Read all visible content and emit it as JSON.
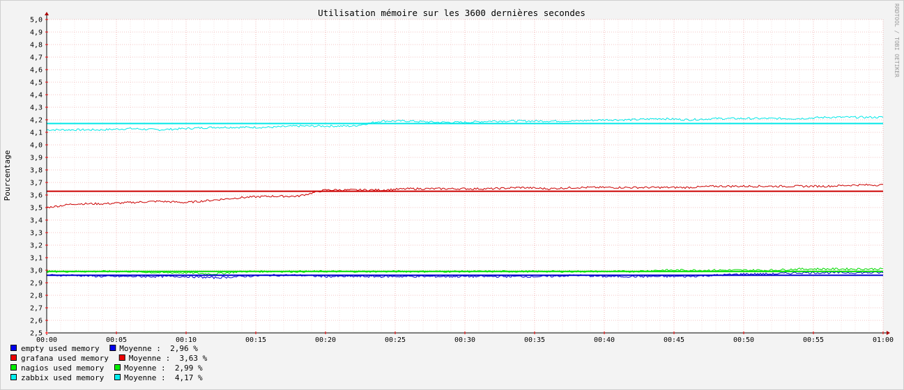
{
  "chart_data": {
    "type": "line",
    "title": "Utilisation mémoire sur les 3600 dernières secondes",
    "ylabel": "Pourcentage",
    "xlabel": "",
    "watermark": "RRDTOOL / TOBI OETIKER",
    "ylim": [
      2.5,
      5.0
    ],
    "xlim": [
      "00:00",
      "01:00"
    ],
    "grid": true,
    "legend_position": "bottom-left",
    "x_ticks": [
      "00:00",
      "00:05",
      "00:10",
      "00:15",
      "00:20",
      "00:25",
      "00:30",
      "00:35",
      "00:40",
      "00:45",
      "00:50",
      "00:55",
      "01:00"
    ],
    "y_ticks": [
      "2,5",
      "2,6",
      "2,7",
      "2,8",
      "2,9",
      "3,0",
      "3,1",
      "3,2",
      "3,3",
      "3,4",
      "3,5",
      "3,6",
      "3,7",
      "3,8",
      "3,9",
      "4,0",
      "4,1",
      "4,2",
      "4,3",
      "4,4",
      "4,5",
      "4,6",
      "4,7",
      "4,8",
      "4,9",
      "5,0"
    ],
    "x": [
      "00:00",
      "00:02",
      "00:04",
      "00:06",
      "00:08",
      "00:10",
      "00:12",
      "00:14",
      "00:16",
      "00:18",
      "00:20",
      "00:22",
      "00:24",
      "00:26",
      "00:28",
      "00:30",
      "00:32",
      "00:34",
      "00:36",
      "00:38",
      "00:40",
      "00:42",
      "00:44",
      "00:46",
      "00:48",
      "00:50",
      "00:52",
      "00:54",
      "00:56",
      "00:58",
      "01:00"
    ],
    "series": [
      {
        "name": "zabbix used memory",
        "color": "#00e8e8",
        "average": 4.17,
        "values": [
          4.12,
          4.12,
          4.12,
          4.13,
          4.12,
          4.13,
          4.14,
          4.14,
          4.14,
          4.15,
          4.15,
          4.15,
          4.19,
          4.19,
          4.18,
          4.18,
          4.19,
          4.19,
          4.19,
          4.19,
          4.2,
          4.2,
          4.21,
          4.2,
          4.21,
          4.21,
          4.21,
          4.21,
          4.22,
          4.22,
          4.22
        ]
      },
      {
        "name": "grafana used memory",
        "color": "#cc0000",
        "average": 3.63,
        "values": [
          3.5,
          3.53,
          3.53,
          3.54,
          3.55,
          3.54,
          3.56,
          3.58,
          3.59,
          3.59,
          3.64,
          3.64,
          3.64,
          3.65,
          3.65,
          3.65,
          3.65,
          3.66,
          3.65,
          3.66,
          3.66,
          3.66,
          3.66,
          3.66,
          3.67,
          3.67,
          3.67,
          3.67,
          3.67,
          3.68,
          3.68
        ]
      },
      {
        "name": "nagios used memory",
        "color": "#00dd00",
        "average": 2.99,
        "values": [
          2.99,
          2.99,
          2.99,
          2.99,
          2.98,
          2.98,
          2.97,
          2.99,
          2.99,
          2.99,
          2.99,
          2.99,
          2.99,
          2.99,
          2.99,
          2.99,
          2.99,
          2.99,
          2.99,
          2.99,
          2.99,
          2.99,
          3.0,
          3.0,
          3.0,
          3.0,
          3.0,
          3.01,
          3.01,
          3.01,
          3.01
        ]
      },
      {
        "name": "empty used memory",
        "color": "#0000cc",
        "average": 2.96,
        "values": [
          2.96,
          2.96,
          2.95,
          2.95,
          2.95,
          2.95,
          2.94,
          2.95,
          2.96,
          2.96,
          2.95,
          2.95,
          2.95,
          2.95,
          2.95,
          2.95,
          2.95,
          2.95,
          2.95,
          2.96,
          2.95,
          2.95,
          2.95,
          2.95,
          2.96,
          2.97,
          2.97,
          2.98,
          2.98,
          2.98,
          2.98
        ]
      }
    ]
  },
  "legend": [
    {
      "color": "#0000ee",
      "label": "empty used memory",
      "avg_label": "Moyenne :  2,96 %"
    },
    {
      "color": "#ee0000",
      "label": "grafana used memory",
      "avg_label": "Moyenne :  3,63 %"
    },
    {
      "color": "#00ee00",
      "label": "nagios used memory",
      "avg_label": "Moyenne :  2,99 %"
    },
    {
      "color": "#00eeee",
      "label": "zabbix used memory",
      "avg_label": "Moyenne :  4,17 %"
    }
  ]
}
